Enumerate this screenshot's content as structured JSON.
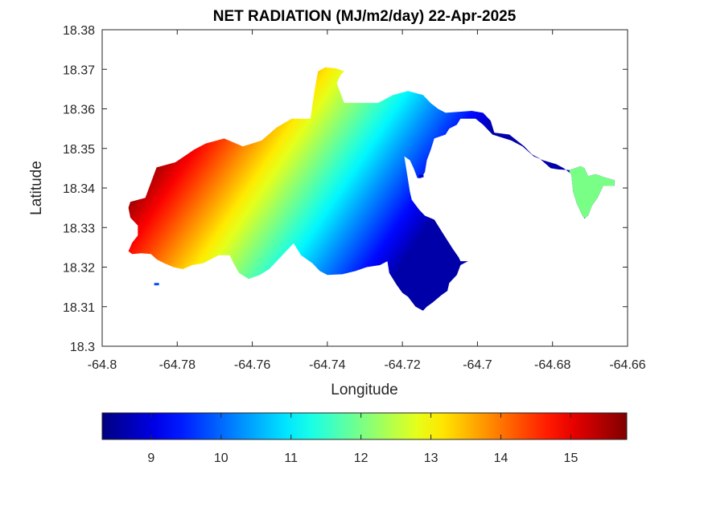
{
  "chart_data": {
    "type": "heatmap",
    "title": "NET RADIATION (MJ/m2/day) 22-Apr-2025",
    "xlabel": "Longitude",
    "ylabel": "Latitude",
    "xlim": [
      -64.8,
      -64.66
    ],
    "ylim": [
      18.3,
      18.38
    ],
    "x_ticks": [
      -64.8,
      -64.78,
      -64.76,
      -64.74,
      -64.72,
      -64.7,
      -64.68,
      -64.66
    ],
    "x_tick_labels": [
      "-64.8",
      "-64.78",
      "-64.76",
      "-64.74",
      "-64.72",
      "-64.7",
      "-64.68",
      "-64.66"
    ],
    "y_ticks": [
      18.3,
      18.31,
      18.32,
      18.33,
      18.34,
      18.35,
      18.36,
      18.37,
      18.38
    ],
    "y_tick_labels": [
      "18.3",
      "18.31",
      "18.32",
      "18.33",
      "18.34",
      "18.35",
      "18.36",
      "18.37",
      "18.38"
    ],
    "grid": false,
    "colormap": "jet",
    "colorbar": {
      "location": "bottom",
      "range": [
        8.3,
        15.8
      ],
      "ticks": [
        9,
        10,
        11,
        12,
        13,
        14,
        15
      ],
      "tick_labels": [
        "9",
        "10",
        "11",
        "12",
        "13",
        "14",
        "15"
      ]
    },
    "field": {
      "description_gradient_axis": "value increases toward the northwest",
      "high_region_value": 15.6,
      "low_region_value": 8.6,
      "east_tip_value": 12.0
    },
    "region_outline": [
      [
        -64.7925,
        18.3365
      ],
      [
        -64.7885,
        18.3375
      ],
      [
        -64.7855,
        18.3452
      ],
      [
        -64.7805,
        18.3465
      ],
      [
        -64.7755,
        18.3497
      ],
      [
        -64.7725,
        18.3512
      ],
      [
        -64.7675,
        18.3525
      ],
      [
        -64.7625,
        18.3505
      ],
      [
        -64.7575,
        18.352
      ],
      [
        -64.7535,
        18.3553
      ],
      [
        -64.7495,
        18.3575
      ],
      [
        -64.7445,
        18.3575
      ],
      [
        -64.7435,
        18.364
      ],
      [
        -64.7425,
        18.3695
      ],
      [
        -64.7405,
        18.3705
      ],
      [
        -64.7375,
        18.3702
      ],
      [
        -64.7355,
        18.3695
      ],
      [
        -64.7365,
        18.3685
      ],
      [
        -64.7375,
        18.3665
      ],
      [
        -64.7355,
        18.3615
      ],
      [
        -64.7315,
        18.3615
      ],
      [
        -64.7265,
        18.3615
      ],
      [
        -64.7225,
        18.3635
      ],
      [
        -64.7185,
        18.3645
      ],
      [
        -64.7145,
        18.3635
      ],
      [
        -64.7125,
        18.3615
      ],
      [
        -64.7105,
        18.36
      ],
      [
        -64.7085,
        18.359
      ],
      [
        -64.7015,
        18.3595
      ],
      [
        -64.6985,
        18.359
      ],
      [
        -64.6965,
        18.357
      ],
      [
        -64.6955,
        18.354
      ],
      [
        -64.6915,
        18.3535
      ],
      [
        -64.6895,
        18.352
      ],
      [
        -64.6875,
        18.3505
      ],
      [
        -64.6855,
        18.3485
      ],
      [
        -64.6835,
        18.3475
      ],
      [
        -64.6805,
        18.345
      ],
      [
        -64.6785,
        18.3447
      ],
      [
        -64.6755,
        18.3445
      ],
      [
        -64.6725,
        18.3455
      ],
      [
        -64.6715,
        18.345
      ],
      [
        -64.6705,
        18.343
      ],
      [
        -64.6685,
        18.3435
      ],
      [
        -64.6665,
        18.3428
      ],
      [
        -64.6635,
        18.342
      ],
      [
        -64.6635,
        18.3405
      ],
      [
        -64.6665,
        18.3405
      ],
      [
        -64.668,
        18.3375
      ],
      [
        -64.6695,
        18.3355
      ],
      [
        -64.6705,
        18.333
      ],
      [
        -64.6715,
        18.3323
      ],
      [
        -64.672,
        18.333
      ],
      [
        -64.6735,
        18.336
      ],
      [
        -64.6745,
        18.339
      ],
      [
        -64.675,
        18.3435
      ],
      [
        -64.677,
        18.345
      ],
      [
        -64.679,
        18.346
      ],
      [
        -64.6825,
        18.347
      ],
      [
        -64.685,
        18.348
      ],
      [
        -64.688,
        18.3505
      ],
      [
        -64.691,
        18.352
      ],
      [
        -64.696,
        18.3535
      ],
      [
        -64.6985,
        18.356
      ],
      [
        -64.7005,
        18.3575
      ],
      [
        -64.7045,
        18.3575
      ],
      [
        -64.7055,
        18.356
      ],
      [
        -64.7075,
        18.355
      ],
      [
        -64.7085,
        18.3535
      ],
      [
        -64.7115,
        18.3525
      ],
      [
        -64.7125,
        18.3495
      ],
      [
        -64.7135,
        18.347
      ],
      [
        -64.714,
        18.344
      ],
      [
        -64.715,
        18.3425
      ],
      [
        -64.716,
        18.3425
      ],
      [
        -64.717,
        18.345
      ],
      [
        -64.718,
        18.347
      ],
      [
        -64.7195,
        18.348
      ],
      [
        -64.718,
        18.339
      ],
      [
        -64.7175,
        18.337
      ],
      [
        -64.7155,
        18.3345
      ],
      [
        -64.714,
        18.333
      ],
      [
        -64.7115,
        18.332
      ],
      [
        -64.7095,
        18.329
      ],
      [
        -64.7075,
        18.326
      ],
      [
        -64.7065,
        18.3245
      ],
      [
        -64.705,
        18.3225
      ],
      [
        -64.7045,
        18.3215
      ],
      [
        -64.7025,
        18.3215
      ],
      [
        -64.7045,
        18.3205
      ],
      [
        -64.7055,
        18.318
      ],
      [
        -64.7075,
        18.316
      ],
      [
        -64.708,
        18.314
      ],
      [
        -64.7095,
        18.313
      ],
      [
        -64.712,
        18.311
      ],
      [
        -64.7135,
        18.31
      ],
      [
        -64.7145,
        18.309
      ],
      [
        -64.7165,
        18.31
      ],
      [
        -64.7185,
        18.3125
      ],
      [
        -64.72,
        18.3135
      ],
      [
        -64.7215,
        18.3155
      ],
      [
        -64.7235,
        18.3185
      ],
      [
        -64.724,
        18.3215
      ],
      [
        -64.726,
        18.3205
      ],
      [
        -64.7295,
        18.32
      ],
      [
        -64.7325,
        18.319
      ],
      [
        -64.736,
        18.3182
      ],
      [
        -64.74,
        18.318
      ],
      [
        -64.742,
        18.319
      ],
      [
        -64.744,
        18.321
      ],
      [
        -64.747,
        18.323
      ],
      [
        -64.749,
        18.326
      ],
      [
        -64.751,
        18.324
      ],
      [
        -64.753,
        18.322
      ],
      [
        -64.7555,
        18.3195
      ],
      [
        -64.758,
        18.318
      ],
      [
        -64.761,
        18.317
      ],
      [
        -64.7635,
        18.3185
      ],
      [
        -64.765,
        18.321
      ],
      [
        -64.766,
        18.323
      ],
      [
        -64.769,
        18.323
      ],
      [
        -64.773,
        18.321
      ],
      [
        -64.776,
        18.3205
      ],
      [
        -64.7785,
        18.3195
      ],
      [
        -64.781,
        18.32
      ],
      [
        -64.7835,
        18.321
      ],
      [
        -64.7855,
        18.322
      ],
      [
        -64.787,
        18.3233
      ],
      [
        -64.7895,
        18.3235
      ],
      [
        -64.792,
        18.3233
      ],
      [
        -64.793,
        18.324
      ],
      [
        -64.792,
        18.3262
      ],
      [
        -64.7905,
        18.328
      ],
      [
        -64.7905,
        18.3305
      ],
      [
        -64.7925,
        18.3325
      ],
      [
        -64.793,
        18.335
      ]
    ],
    "islets": [
      [
        -64.7855,
        18.3157
      ],
      [
        -64.715,
        18.343
      ]
    ]
  }
}
